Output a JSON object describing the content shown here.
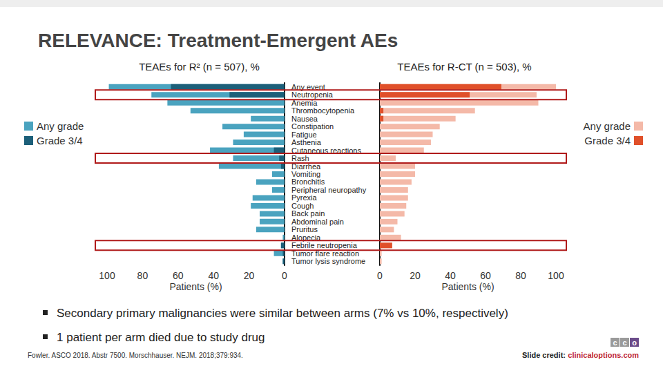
{
  "slide": {
    "title": "RELEVANCE: Treatment-Emergent AEs",
    "bullets": [
      "Secondary primary malignancies were similar between arms (7% vs 10%, respectively)",
      "1 patient per arm died due to study drug"
    ],
    "footnote": "Fowler. ASCO 2018. Abstr 7500. Morschhauser. NEJM. 2018;379:934.",
    "credit": "Slide credit:",
    "credit_link": "clinicaloptions.com",
    "logo": "cco",
    "highlighted_rows": [
      "Neutropenia",
      "Rash",
      "Febrile neutropenia"
    ]
  },
  "chart_data": [
    {
      "type": "bar",
      "title": "TEAEs for R² (n = 507), %",
      "orientation": "horizontal",
      "categories": [
        "Any event",
        "Neutropenia",
        "Anemia",
        "Thrombocytopenia",
        "Nausea",
        "Constipation",
        "Fatigue",
        "Asthenia",
        "Cutaneous reactions",
        "Rash",
        "Diarrhea",
        "Vomiting",
        "Bronchitis",
        "Peripheral neuropathy",
        "Pyrexia",
        "Cough",
        "Back pain",
        "Abdominal pain",
        "Pruritus",
        "Alopecia",
        "Febrile neutropenia",
        "Tumor flare reaction",
        "Tumor lysis syndrome"
      ],
      "series": [
        {
          "name": "Any grade",
          "color": "#4aa3bf",
          "values": [
            99,
            75,
            66,
            53,
            19,
            35,
            23,
            29,
            42,
            29,
            37,
            7,
            16,
            7,
            18,
            19,
            14,
            14,
            16,
            1,
            2,
            6,
            1
          ]
        },
        {
          "name": "Grade 3/4",
          "color": "#1c5f79",
          "values": [
            64,
            31,
            0,
            0,
            0,
            0,
            0,
            0,
            6,
            3,
            2,
            0,
            0,
            0,
            0,
            0,
            0,
            0,
            0,
            0,
            2,
            1,
            1
          ]
        }
      ],
      "xlabel": "Patients (%)",
      "xlim": [
        0,
        100
      ],
      "xticks": [
        0,
        20,
        40,
        60,
        80,
        100
      ],
      "legend": "left",
      "tick_labels": "x",
      "grid": false
    },
    {
      "type": "bar",
      "title": "TEAEs for R-CT (n = 503), %",
      "orientation": "horizontal",
      "categories": [
        "Any event",
        "Neutropenia",
        "Anemia",
        "Thrombocytopenia",
        "Nausea",
        "Constipation",
        "Fatigue",
        "Asthenia",
        "Cutaneous reactions",
        "Rash",
        "Diarrhea",
        "Vomiting",
        "Bronchitis",
        "Peripheral neuropathy",
        "Pyrexia",
        "Cough",
        "Back pain",
        "Abdominal pain",
        "Pruritus",
        "Alopecia",
        "Febrile neutropenia",
        "Tumor flare reaction",
        "Tumor lysis syndrome"
      ],
      "series": [
        {
          "name": "Any grade",
          "color": "#f4b9a8",
          "values": [
            100,
            89,
            90,
            54,
            43,
            34,
            30,
            29,
            25,
            9,
            20,
            20,
            18,
            16,
            16,
            15,
            14,
            10,
            8,
            12,
            7,
            1,
            1
          ]
        },
        {
          "name": "Grade 3/4",
          "color": "#e0502a",
          "values": [
            69,
            51,
            0,
            2,
            2,
            0,
            0,
            0,
            0,
            0,
            0,
            0,
            0,
            0,
            0,
            0,
            0,
            0,
            0,
            0,
            7,
            0,
            0
          ]
        }
      ],
      "xlabel": "Patients (%)",
      "xlim": [
        0,
        100
      ],
      "xticks": [
        0,
        20,
        40,
        60,
        80,
        100
      ],
      "legend": "right",
      "grid": false
    }
  ]
}
